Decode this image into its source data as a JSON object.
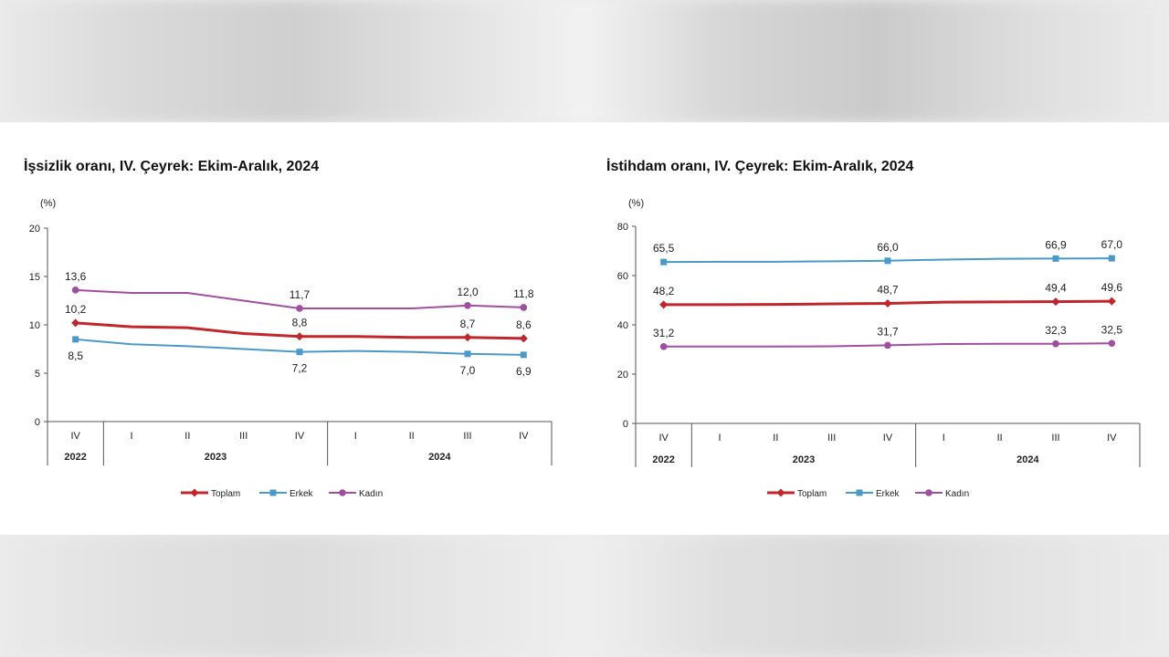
{
  "chart_data": [
    {
      "type": "line",
      "title": "İşsizlik oranı, IV. Çeyrek: Ekim-Aralık, 2024",
      "ylabel": "(%)",
      "ylim": [
        0,
        20
      ],
      "yticks": [
        "0",
        "5",
        "10",
        "15",
        "20"
      ],
      "categories": [
        "IV",
        "I",
        "II",
        "III",
        "IV",
        "I",
        "II",
        "III",
        "IV"
      ],
      "years": [
        {
          "label": "2022",
          "from": 0,
          "to": 0
        },
        {
          "label": "2023",
          "from": 1,
          "to": 4
        },
        {
          "label": "2024",
          "from": 5,
          "to": 8
        }
      ],
      "grid": false,
      "legend_position": "bottom",
      "series": [
        {
          "name": "Toplam",
          "color": "#c0262c",
          "marker": "diamond",
          "values": [
            10.2,
            9.8,
            9.7,
            9.1,
            8.8,
            8.8,
            8.7,
            8.7,
            8.6
          ],
          "labels": [
            "10,2",
            "",
            "",
            "",
            "8,8",
            "",
            "",
            "8,7",
            "8,6"
          ],
          "label_pos": [
            "above",
            "",
            "",
            "",
            "above",
            "",
            "",
            "above",
            "above"
          ]
        },
        {
          "name": "Erkek",
          "color": "#4a9ac9",
          "marker": "square",
          "values": [
            8.5,
            8.0,
            7.8,
            7.5,
            7.2,
            7.3,
            7.2,
            7.0,
            6.9
          ],
          "labels": [
            "8,5",
            "",
            "",
            "",
            "7,2",
            "",
            "",
            "7,0",
            "6,9"
          ],
          "label_pos": [
            "below",
            "",
            "",
            "",
            "below",
            "",
            "",
            "below",
            "below"
          ]
        },
        {
          "name": "Kadın",
          "color": "#a14ea0",
          "marker": "circle",
          "values": [
            13.6,
            13.3,
            13.3,
            12.5,
            11.7,
            11.7,
            11.7,
            12.0,
            11.8
          ],
          "labels": [
            "13,6",
            "",
            "",
            "",
            "11,7",
            "",
            "",
            "12,0",
            "11,8"
          ],
          "label_pos": [
            "above",
            "",
            "",
            "",
            "above",
            "",
            "",
            "above",
            "above"
          ]
        }
      ]
    },
    {
      "type": "line",
      "title": "İstihdam oranı, IV. Çeyrek: Ekim-Aralık, 2024",
      "ylabel": "(%)",
      "ylim": [
        0,
        80
      ],
      "yticks": [
        "0",
        "20",
        "40",
        "60",
        "80"
      ],
      "categories": [
        "IV",
        "I",
        "II",
        "III",
        "IV",
        "I",
        "II",
        "III",
        "IV"
      ],
      "years": [
        {
          "label": "2022",
          "from": 0,
          "to": 0
        },
        {
          "label": "2023",
          "from": 1,
          "to": 4
        },
        {
          "label": "2024",
          "from": 5,
          "to": 8
        }
      ],
      "grid": false,
      "legend_position": "bottom",
      "series": [
        {
          "name": "Toplam",
          "color": "#c0262c",
          "marker": "diamond",
          "values": [
            48.2,
            48.2,
            48.3,
            48.5,
            48.7,
            49.2,
            49.3,
            49.4,
            49.6
          ],
          "labels": [
            "48,2",
            "",
            "",
            "",
            "48,7",
            "",
            "",
            "49,4",
            "49,6"
          ],
          "label_pos": [
            "above",
            "",
            "",
            "",
            "above",
            "",
            "",
            "above",
            "above"
          ]
        },
        {
          "name": "Erkek",
          "color": "#4a9ac9",
          "marker": "square",
          "values": [
            65.5,
            65.6,
            65.6,
            65.8,
            66.0,
            66.5,
            66.8,
            66.9,
            67.0
          ],
          "labels": [
            "65,5",
            "",
            "",
            "",
            "66,0",
            "",
            "",
            "66,9",
            "67,0"
          ],
          "label_pos": [
            "above",
            "",
            "",
            "",
            "above",
            "",
            "",
            "above",
            "above"
          ]
        },
        {
          "name": "Kadın",
          "color": "#a14ea0",
          "marker": "circle",
          "values": [
            31.2,
            31.2,
            31.2,
            31.3,
            31.7,
            32.2,
            32.3,
            32.3,
            32.5
          ],
          "labels": [
            "31,2",
            "",
            "",
            "",
            "31,7",
            "",
            "",
            "32,3",
            "32,5"
          ],
          "label_pos": [
            "above",
            "",
            "",
            "",
            "above",
            "",
            "",
            "above",
            "above"
          ]
        }
      ]
    }
  ]
}
